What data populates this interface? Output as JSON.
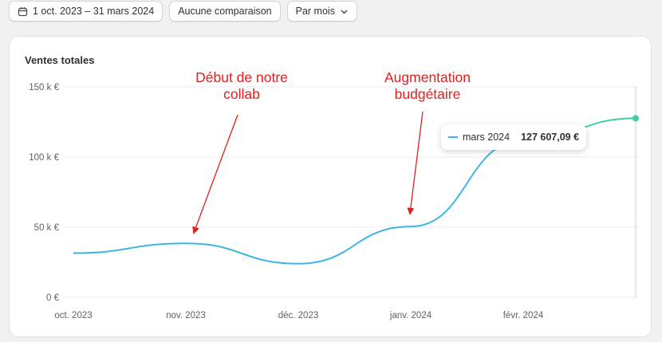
{
  "toolbar": {
    "date_range": "1 oct. 2023 – 31 mars 2024",
    "comparison": "Aucune comparaison",
    "interval": "Par mois"
  },
  "card": {
    "title": "Ventes totales"
  },
  "tooltip": {
    "label": "mars 2024",
    "value": "127 607,09 €"
  },
  "annotations": {
    "first": {
      "line1": "Début de notre",
      "line2": "collab"
    },
    "second": {
      "line1": "Augmentation",
      "line2": "budgétaire"
    }
  },
  "colors": {
    "line": "#3fb6e2",
    "last_segment": "#3ccfa8",
    "annotation": "#e21e1e",
    "grid": "#ebebeb"
  },
  "chart_data": {
    "type": "line",
    "title": "Ventes totales",
    "categories": [
      "oct. 2023",
      "nov. 2023",
      "déc. 2023",
      "janv. 2024",
      "févr. 2024",
      "mars 2024"
    ],
    "series": [
      {
        "values": [
          31500,
          38500,
          24000,
          50500,
          112000,
          127607.09
        ]
      }
    ],
    "yticks": [
      "0 €",
      "50 k €",
      "100 k €",
      "150 k €"
    ],
    "ylim": [
      0,
      150000
    ],
    "grid": true,
    "legend": "none"
  }
}
